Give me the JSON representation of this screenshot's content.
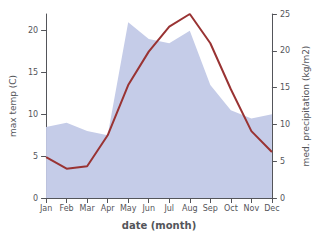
{
  "chart_data": {
    "type": "line",
    "xlabel": "date (month)",
    "ylabel": "max temp (C)",
    "y2label": "med. precipitation (kg/m2)",
    "categories": [
      "Jan",
      "Feb",
      "Mar",
      "Apr",
      "May",
      "Jun",
      "Jul",
      "Aug",
      "Sep",
      "Oct",
      "Nov",
      "Dec"
    ],
    "series": [
      {
        "type": "area",
        "color": "#c5cce8",
        "values": [
          8.5,
          9.0,
          8.0,
          7.5,
          21.0,
          19.0,
          18.5,
          20.0,
          13.5,
          10.5,
          9.5,
          10.0
        ]
      },
      {
        "type": "line",
        "color": "#993333",
        "values": [
          4.9,
          3.5,
          3.8,
          7.5,
          13.5,
          17.5,
          20.5,
          22.0,
          18.5,
          13.0,
          8.0,
          5.5
        ]
      }
    ],
    "ylim": [
      0,
      22
    ],
    "yticks": [
      0,
      5,
      10,
      15,
      20
    ],
    "y2lim": [
      0,
      25
    ],
    "y2ticks": [
      0,
      5,
      10,
      15,
      20,
      25
    ],
    "grid": false
  }
}
